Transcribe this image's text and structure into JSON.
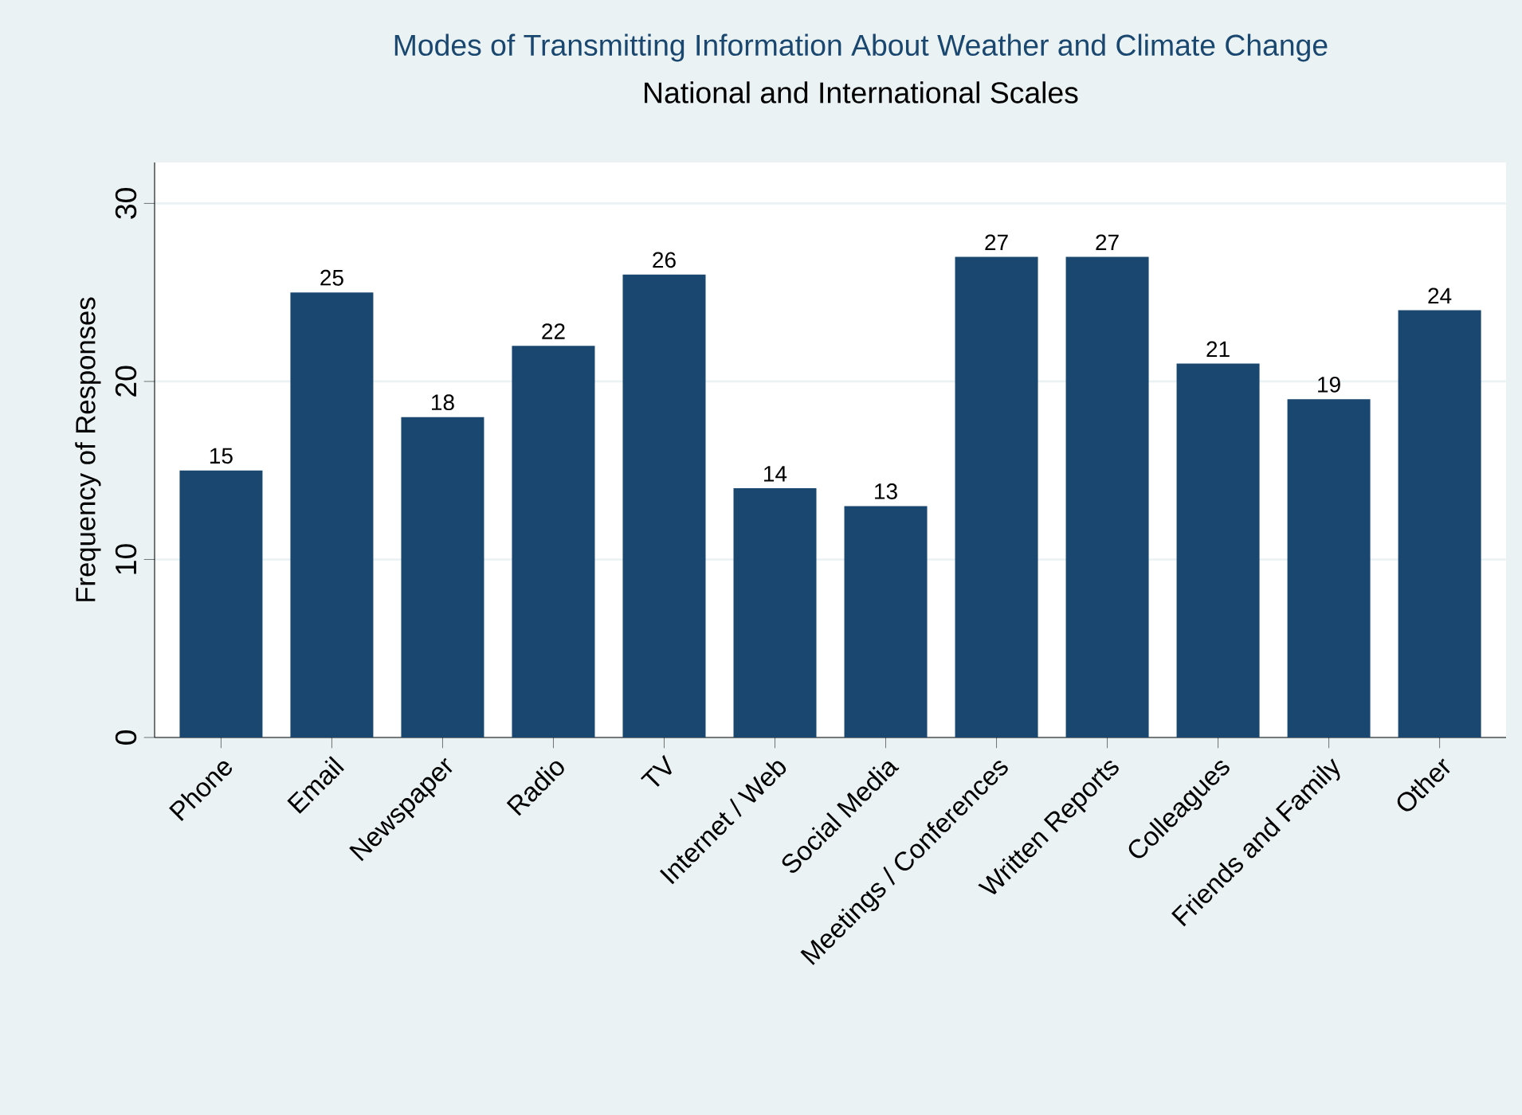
{
  "chart_data": {
    "type": "bar",
    "title": "Modes of Transmitting Information About Weather and Climate Change",
    "subtitle": "National and International Scales",
    "ylabel": "Frequency of Responses",
    "categories": [
      "Phone",
      "Email",
      "Newspaper",
      "Radio",
      "TV",
      "Internet / Web",
      "Social Media",
      "Meetings / Conferences",
      "Written Reports",
      "Colleagues",
      "Friends and Family",
      "Other"
    ],
    "values": [
      15,
      25,
      18,
      22,
      26,
      14,
      13,
      27,
      27,
      21,
      19,
      24
    ],
    "color": "#1a476f",
    "ylim": [
      0,
      32.3
    ],
    "yticks": [
      0,
      10,
      20,
      30
    ],
    "grid": "y",
    "data_labels": true
  }
}
